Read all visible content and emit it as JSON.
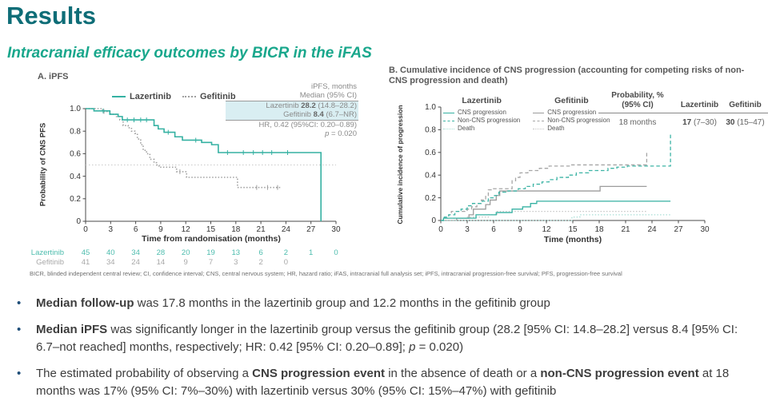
{
  "slide": {
    "title": "Results",
    "subtitle": "Intracranial efficacy outcomes by BICR in the iFAS",
    "footnote": "BICR, blinded independent central review; CI, confidence interval; CNS, central nervous system; HR, hazard ratio; iFAS, intracranial full analysis set; iPFS, intracranial progression-free survival; PFS, progression-free survival",
    "bullets": {
      "b1": {
        "bold": "Median follow-up",
        "rest": " was 17.8 months in the lazertinib group and 12.2 months in the gefitinib group"
      },
      "b2": {
        "bold": "Median iPFS",
        "mid": " was significantly longer in the lazertinib group versus the gefitinib group (28.2 [95% CI: 14.8–28.2] versus 8.4 [95% CI: 6.7–not reached] months, respectively; HR: 0.42 [95% CI: 0.20–0.89]; ",
        "p": "p",
        "post": " = 0.020)"
      },
      "b3": {
        "pre": "The estimated probability of observing a ",
        "bold1": "CNS progression event",
        "mid": " in the absence of death or a ",
        "bold2": "non-CNS progression event",
        "post": " at 18 months was 17% (95% CI: 7%–30%) with lazertinib versus 30% (95% CI: 15%–47%) with gefitinib"
      }
    }
  },
  "colors": {
    "title_teal": "#0e6d77",
    "subtitle_teal": "#19a78c",
    "lazertinib_teal": "#35b1a2",
    "lazertinib_death_teal": "#a8ded6",
    "gefitinib_gray": "#9c9c9c",
    "gefitinib_death_gray": "#c6c6c6",
    "highlight_cyan": "#d9eef2",
    "bullet_blue": "#1f4e79"
  },
  "chart_data": [
    {
      "type": "line",
      "title": "A. iPFS",
      "xlabel": "Time from randomisation (months)",
      "ylabel": "Probability of CNS PFS",
      "xlim": [
        0,
        30
      ],
      "ylim": [
        0,
        1.0
      ],
      "xticks": [
        0,
        3,
        6,
        9,
        12,
        15,
        18,
        21,
        24,
        27,
        30
      ],
      "yticks": [
        0,
        0.2,
        0.4,
        0.6,
        0.8,
        1.0
      ],
      "ytick_labels": [
        "0",
        "0.2",
        "0.4",
        "0.6",
        "0.8",
        "1.0"
      ],
      "ref_line_y": 0.5,
      "grid": false,
      "series": [
        {
          "name": "Gefitinib",
          "color": "#a0a0a0",
          "dash": "1.5,2.2",
          "start": [
            0,
            1.0
          ],
          "jumps": [
            [
              2.0,
              0.975
            ],
            [
              3.0,
              0.95
            ],
            [
              3.7,
              0.93
            ],
            [
              4.1,
              0.9
            ],
            [
              4.5,
              0.85
            ],
            [
              5.1,
              0.83
            ],
            [
              5.5,
              0.8
            ],
            [
              5.9,
              0.78
            ],
            [
              6.2,
              0.73
            ],
            [
              6.6,
              0.68
            ],
            [
              6.9,
              0.63
            ],
            [
              7.3,
              0.6
            ],
            [
              7.7,
              0.55
            ],
            [
              8.2,
              0.52
            ],
            [
              8.5,
              0.5
            ],
            [
              8.8,
              0.48
            ],
            [
              10.9,
              0.44
            ],
            [
              12.1,
              0.39
            ],
            [
              18.2,
              0.3
            ]
          ],
          "end_x": 23.5,
          "censors": [
            2.2,
            11.3,
            20.5,
            21.8,
            23.0
          ]
        },
        {
          "name": "Lazertinib",
          "color": "#35b1a2",
          "dash": "",
          "start": [
            0,
            1.0
          ],
          "jumps": [
            [
              1.0,
              0.98
            ],
            [
              2.9,
              0.95
            ],
            [
              3.9,
              0.93
            ],
            [
              4.4,
              0.9
            ],
            [
              8.2,
              0.85
            ],
            [
              8.7,
              0.82
            ],
            [
              9.4,
              0.79
            ],
            [
              10.7,
              0.75
            ],
            [
              11.6,
              0.72
            ],
            [
              13.9,
              0.7
            ],
            [
              15.1,
              0.68
            ],
            [
              15.9,
              0.61
            ],
            [
              28.2,
              0.0
            ]
          ],
          "end_x": 28.2,
          "censors": [
            2.1,
            5.0,
            5.8,
            6.6,
            7.3,
            9.9,
            13.2,
            17.0,
            18.9,
            20.1,
            21.2,
            22.3,
            24.2
          ]
        }
      ],
      "stats": {
        "line1": "iPFS, months",
        "line2": "Median (95% CI)",
        "laz_name": "Lazertinib ",
        "laz_value": "28.2",
        "laz_ci": " (14.8–28.2)",
        "gef_name": "Gefitinib ",
        "gef_value": "8.4",
        "gef_ci": " (6.7–NR)",
        "hr": "HR, 0.42 (95%CI: 0.20–0.89)",
        "p_label": "p",
        "p_value": " = 0.020"
      },
      "risk_table": {
        "rows": [
          {
            "name": "Lazertinib",
            "color": "#4cbcad",
            "values": [
              "45",
              "40",
              "34",
              "28",
              "20",
              "19",
              "13",
              "6",
              "2",
              "1",
              "0"
            ]
          },
          {
            "name": "Gefitinib",
            "color": "#a8a8a8",
            "values": [
              "41",
              "34",
              "24",
              "14",
              "9",
              "7",
              "3",
              "2",
              "0"
            ]
          }
        ]
      }
    },
    {
      "type": "line",
      "title": "B. Cumulative incidence of CNS progression (accounting for competing risks of non-CNS progression and death)",
      "xlabel": "Time (months)",
      "ylabel": "Cumulative incidence of progression",
      "xlim": [
        0,
        30
      ],
      "ylim": [
        0,
        1.0
      ],
      "xticks": [
        0,
        3,
        6,
        9,
        12,
        15,
        18,
        21,
        24,
        27,
        30
      ],
      "yticks": [
        0,
        0.2,
        0.4,
        0.6,
        0.8,
        1.0
      ],
      "ytick_labels": [
        "0",
        "0.2",
        "0.4",
        "0.6",
        "0.8",
        "1.0"
      ],
      "grid": false,
      "series": [
        {
          "name": "Gefitinib Non-CNS progression",
          "color": "#a6a6a6",
          "dash": "4.5,3",
          "start": [
            0,
            0
          ],
          "jumps": [
            [
              0.3,
              0.02
            ],
            [
              0.9,
              0.05
            ],
            [
              1.2,
              0.08
            ],
            [
              3.0,
              0.1
            ],
            [
              3.5,
              0.12
            ],
            [
              4.1,
              0.15
            ],
            [
              4.6,
              0.18
            ],
            [
              5.1,
              0.22
            ],
            [
              5.4,
              0.27
            ],
            [
              5.9,
              0.28
            ],
            [
              8.1,
              0.35
            ],
            [
              8.5,
              0.38
            ],
            [
              9.0,
              0.42
            ],
            [
              9.9,
              0.44
            ],
            [
              11.2,
              0.46
            ],
            [
              12.3,
              0.48
            ],
            [
              14.7,
              0.49
            ],
            [
              23.4,
              0.6
            ]
          ],
          "end_x": 23.4
        },
        {
          "name": "Gefitinib Death",
          "color": "#c6c6c6",
          "dash": "1.5,2.2",
          "start": [
            0,
            0
          ],
          "jumps": [
            [
              1.5,
              0.02
            ],
            [
              2.9,
              0.03
            ],
            [
              5.4,
              0.05
            ],
            [
              6.4,
              0.08
            ]
          ],
          "end_x": 23.4
        },
        {
          "name": "Gefitinib CNS progression",
          "color": "#9c9c9c",
          "dash": "",
          "start": [
            0,
            0
          ],
          "jumps": [
            [
              1.8,
              0.02
            ],
            [
              3.2,
              0.05
            ],
            [
              3.7,
              0.1
            ],
            [
              5.1,
              0.14
            ],
            [
              5.6,
              0.18
            ],
            [
              6.3,
              0.22
            ],
            [
              6.7,
              0.26
            ],
            [
              18.1,
              0.3
            ]
          ],
          "end_x": 23.4
        },
        {
          "name": "Lazertinib Non-CNS progression",
          "color": "#3db4a5",
          "dash": "4.5,3",
          "start": [
            0,
            0
          ],
          "jumps": [
            [
              0.4,
              0.03
            ],
            [
              0.9,
              0.05
            ],
            [
              1.6,
              0.08
            ],
            [
              2.3,
              0.1
            ],
            [
              3.0,
              0.13
            ],
            [
              3.6,
              0.15
            ],
            [
              4.7,
              0.17
            ],
            [
              5.4,
              0.2
            ],
            [
              6.1,
              0.22
            ],
            [
              6.6,
              0.25
            ],
            [
              7.4,
              0.26
            ],
            [
              8.8,
              0.28
            ],
            [
              9.6,
              0.3
            ],
            [
              10.5,
              0.32
            ],
            [
              11.5,
              0.34
            ],
            [
              12.3,
              0.36
            ],
            [
              13.2,
              0.38
            ],
            [
              14.5,
              0.4
            ],
            [
              15.4,
              0.42
            ],
            [
              16.8,
              0.44
            ],
            [
              19.0,
              0.46
            ],
            [
              20.0,
              0.47
            ],
            [
              21.2,
              0.48
            ],
            [
              26.1,
              0.76
            ]
          ],
          "end_x": 26.1
        },
        {
          "name": "Lazertinib Death",
          "color": "#a8ded6",
          "dash": "1.5,2.2",
          "start": [
            0,
            0
          ],
          "jumps": [
            [
              14.9,
              0.03
            ],
            [
              15.8,
              0.05
            ]
          ],
          "end_x": 26.1
        },
        {
          "name": "Lazertinib CNS progression",
          "color": "#35b1a2",
          "dash": "",
          "start": [
            0,
            0
          ],
          "jumps": [
            [
              0.3,
              0.02
            ],
            [
              4.0,
              0.05
            ],
            [
              6.3,
              0.07
            ],
            [
              8.1,
              0.1
            ],
            [
              9.3,
              0.12
            ],
            [
              10.2,
              0.15
            ],
            [
              10.9,
              0.17
            ]
          ],
          "end_x": 26.1
        }
      ],
      "legend": {
        "laz": {
          "header": "Lazertinib",
          "items": [
            "CNS progression",
            "Non-CNS progression",
            "Death"
          ]
        },
        "gef": {
          "header": "Gefitinib",
          "items": [
            "CNS progression",
            "Non-CNS progression",
            "Death"
          ]
        }
      },
      "prob_table": {
        "col1_header_line1": "Probability, %",
        "col1_header_line2": "(95% CI)",
        "col2_header": "Lazertinib",
        "col3_header": "Gefitinib",
        "row_label": "18 months",
        "laz_value": "17",
        "laz_ci": " (7–30)",
        "gef_value": "30",
        "gef_ci": " (15–47)"
      }
    }
  ]
}
